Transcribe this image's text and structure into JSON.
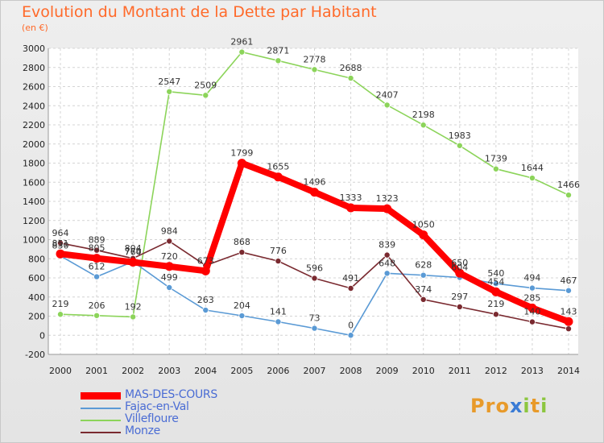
{
  "title": "Evolution du Montant de la Dette par Habitant",
  "subtitle": "(en €)",
  "brand": {
    "text": "Proxiti",
    "letter_colors": [
      "#e89a2a",
      "#e89a2a",
      "#e89a2a",
      "#3a7bd5",
      "#8cc63f",
      "#e89a2a",
      "#8cc63f"
    ]
  },
  "chart_data": {
    "type": "line",
    "x": [
      "2000",
      "2001",
      "2002",
      "2003",
      "2004",
      "2005",
      "2006",
      "2007",
      "2008",
      "2009",
      "2010",
      "2011",
      "2012",
      "2013",
      "2014"
    ],
    "ylim": [
      -200,
      3000
    ],
    "yticks": [
      -200,
      0,
      200,
      400,
      600,
      800,
      1000,
      1200,
      1400,
      1600,
      1800,
      2000,
      2200,
      2400,
      2600,
      2800,
      3000
    ],
    "grid": true,
    "legend": "bottom-left",
    "series": [
      {
        "name": "Villefloure",
        "color": "#8cd45a",
        "values": [
          219,
          206,
          192,
          2547,
          2509,
          2961,
          2871,
          2778,
          2688,
          2407,
          2198,
          1983,
          1739,
          1644,
          1466
        ],
        "labels": [
          "219",
          "206",
          "192",
          "2547",
          "2509",
          "2961",
          "2871",
          "2778",
          "2688",
          "2407",
          "2198",
          "1983",
          "1739",
          "1644",
          "1466"
        ]
      },
      {
        "name": "Fajac-en-Val",
        "color": "#5a9ad5",
        "values": [
          830,
          612,
          770,
          499,
          263,
          204,
          141,
          73,
          0,
          648,
          628,
          604,
          540,
          494,
          467
        ],
        "labels": [
          "830",
          "612",
          "770",
          "499",
          "263",
          "204",
          "141",
          "73",
          "0",
          "648",
          "628",
          "604",
          "540",
          "494",
          "467"
        ]
      },
      {
        "name": "Monze",
        "color": "#7a2a30",
        "values": [
          964,
          889,
          804,
          984,
          730,
          868,
          776,
          596,
          491,
          839,
          374,
          297,
          219,
          140,
          68
        ],
        "labels": [
          "964",
          "889",
          "804",
          "984",
          "",
          "868",
          "776",
          "596",
          "491",
          "839",
          "374",
          "297",
          "219",
          "140",
          ""
        ]
      },
      {
        "name": "MAS-DES-COURS",
        "color": "#ff0000",
        "values": [
          851,
          805,
          764,
          720,
          673,
          1799,
          1655,
          1496,
          1333,
          1323,
          1050,
          650,
          454,
          285,
          143
        ],
        "labels": [
          "851",
          "805",
          "764",
          "720",
          "673",
          "1799",
          "1655",
          "1496",
          "1333",
          "1323",
          "1050",
          "650",
          "454",
          "285",
          "143"
        ]
      }
    ]
  }
}
